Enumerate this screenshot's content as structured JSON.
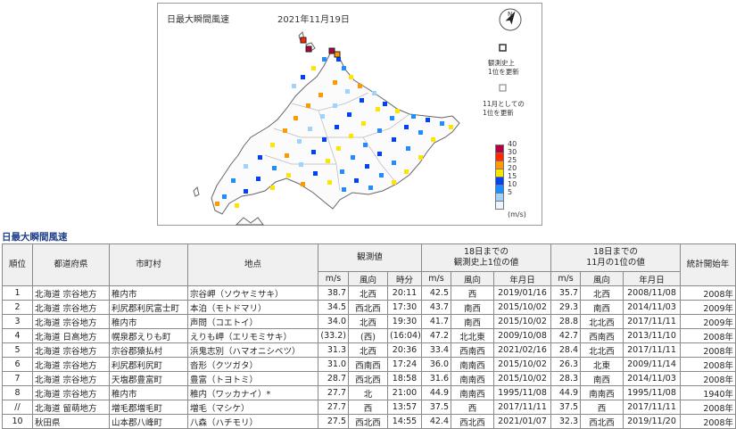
{
  "map": {
    "title": "日最大瞬間風速",
    "date": "2021年11月19日",
    "legend": {
      "unit": "(m/s)",
      "levels": [
        {
          "label": "40",
          "color": "#b4003c"
        },
        {
          "label": "30",
          "color": "#ff2800"
        },
        {
          "label": "25",
          "color": "#ff9900"
        },
        {
          "label": "20",
          "color": "#fae600"
        },
        {
          "label": "15",
          "color": "#0041ff"
        },
        {
          "label": "10",
          "color": "#218cff"
        },
        {
          "label": "5",
          "color": "#a0d2ff"
        },
        {
          "label": "",
          "color": "#f2f2ff"
        }
      ]
    },
    "notes": {
      "record_all_time": "観測史上\n1位を更新",
      "record_month": "11月としての\n1位を更新"
    }
  },
  "table": {
    "section_title": "日最大瞬間風速",
    "headers": {
      "rank": "順位",
      "prefecture": "都道府県",
      "municipality": "市町村",
      "station": "地点",
      "observed": "観測値",
      "record_all": "18日までの\n観測史上1位の値",
      "record_month": "18日までの\n11月の1位の値",
      "start_year": "統計開始年",
      "ms": "m/s",
      "direction": "風向",
      "time": "時分",
      "date": "年月日"
    },
    "rows": [
      {
        "rank": "1",
        "pref": "北海道 宗谷地方",
        "city": "稚内市",
        "station": "宗谷岬（ソウヤミサキ）",
        "speed": "38.7",
        "dir": "北西",
        "time": "20:11",
        "rec_speed": "42.5",
        "rec_dir": "西",
        "rec_date": "2019/01/16",
        "mon_speed": "35.7",
        "mon_dir": "北西",
        "mon_date": "2008/11/08",
        "start": "2008年"
      },
      {
        "rank": "2",
        "pref": "北海道 宗谷地方",
        "city": "利尻郡利尻富士町",
        "station": "本泊（モトドマリ）",
        "speed": "34.5",
        "dir": "西北西",
        "time": "17:30",
        "rec_speed": "43.7",
        "rec_dir": "南西",
        "rec_date": "2015/10/02",
        "mon_speed": "29.3",
        "mon_dir": "南西",
        "mon_date": "2014/11/03",
        "start": "2009年"
      },
      {
        "rank": "3",
        "pref": "北海道 宗谷地方",
        "city": "稚内市",
        "station": "声問（コエトイ）",
        "speed": "34.0",
        "dir": "北西",
        "time": "19:30",
        "rec_speed": "41.7",
        "rec_dir": "南西",
        "rec_date": "2015/10/02",
        "mon_speed": "28.8",
        "mon_dir": "北北西",
        "mon_date": "2017/11/11",
        "start": "2009年"
      },
      {
        "rank": "4",
        "pref": "北海道 日高地方",
        "city": "幌泉郡えりも町",
        "station": "えりも岬（エリモミサキ）",
        "speed": "(33.2)",
        "dir": "(西)",
        "time": "(16:04)",
        "rec_speed": "47.2",
        "rec_dir": "北北東",
        "rec_date": "2009/10/08",
        "mon_speed": "42.7",
        "mon_dir": "西南西",
        "mon_date": "2013/11/10",
        "start": "2008年"
      },
      {
        "rank": "5",
        "pref": "北海道 宗谷地方",
        "city": "宗谷郡猿払村",
        "station": "浜鬼志別（ハマオニシベツ）",
        "speed": "31.3",
        "dir": "北西",
        "time": "20:36",
        "rec_speed": "33.4",
        "rec_dir": "西南西",
        "rec_date": "2021/02/16",
        "mon_speed": "28.4",
        "mon_dir": "北北西",
        "mon_date": "2017/11/11",
        "start": "2008年"
      },
      {
        "rank": "6",
        "pref": "北海道 宗谷地方",
        "city": "利尻郡利尻町",
        "station": "沓形（クツガタ）",
        "speed": "31.0",
        "dir": "西南西",
        "time": "17:24",
        "rec_speed": "36.0",
        "rec_dir": "南南西",
        "rec_date": "2015/10/02",
        "mon_speed": "26.3",
        "mon_dir": "北東",
        "mon_date": "2009/11/14",
        "start": "2008年"
      },
      {
        "rank": "7",
        "pref": "北海道 宗谷地方",
        "city": "天塩郡豊富町",
        "station": "豊富（トヨトミ）",
        "speed": "28.7",
        "dir": "西北西",
        "time": "18:58",
        "rec_speed": "31.6",
        "rec_dir": "南南西",
        "rec_date": "2015/10/02",
        "mon_speed": "28.3",
        "mon_dir": "南西",
        "mon_date": "2014/11/03",
        "start": "2008年"
      },
      {
        "rank": "8",
        "pref": "北海道 宗谷地方",
        "city": "稚内市",
        "station": "稚内（ワッカナイ）*",
        "speed": "27.7",
        "dir": "北",
        "time": "21:00",
        "rec_speed": "44.9",
        "rec_dir": "南南西",
        "rec_date": "1995/11/08",
        "mon_speed": "44.9",
        "mon_dir": "南南西",
        "mon_date": "1995/11/08",
        "start": "1940年"
      },
      {
        "rank": "//",
        "pref": "北海道 留萌地方",
        "city": "増毛郡増毛町",
        "station": "増毛（マシケ）",
        "speed": "27.7",
        "dir": "西",
        "time": "13:57",
        "rec_speed": "37.5",
        "rec_dir": "西",
        "rec_date": "2017/11/11",
        "mon_speed": "37.5",
        "mon_dir": "西",
        "mon_date": "2017/11/11",
        "start": "2008年"
      },
      {
        "rank": "10",
        "pref": "秋田県",
        "city": "山本郡八峰町",
        "station": "八森（ハチモリ）",
        "speed": "27.5",
        "dir": "西北西",
        "time": "14:55",
        "rec_speed": "42.4",
        "rec_dir": "西北西",
        "rec_date": "2021/01/07",
        "mon_speed": "32.3",
        "mon_dir": "西北西",
        "mon_date": "2019/11/20",
        "start": "2008年"
      }
    ]
  }
}
